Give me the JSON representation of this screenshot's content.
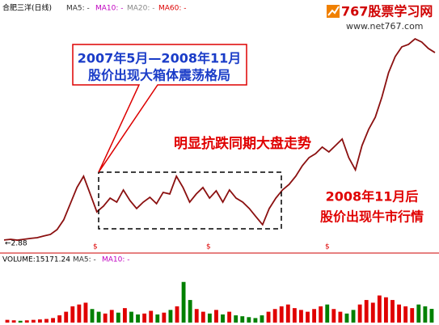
{
  "header": {
    "stock": "合肥三洋(日线)",
    "ma": [
      "MA5: -",
      "MA10: -",
      "MA20: -",
      "MA60: -"
    ]
  },
  "logo": {
    "name": "767股票学习网",
    "url": "www.net767.com"
  },
  "annotations": {
    "callout": [
      "2007年5月—2008年11月",
      "股价出现大箱体震荡格局"
    ],
    "resist": "明显抗跌同期大盘走势",
    "bull": [
      "2008年11月后",
      "股价出现牛市行情"
    ],
    "low": "←2.88",
    "markers": [
      "$",
      "$",
      "$"
    ]
  },
  "chart_data": [
    {
      "type": "line",
      "color": "#8b1010",
      "ylim": [
        2.5,
        16
      ],
      "categories": [
        null,
        null,
        null,
        null,
        null,
        null,
        null,
        null,
        null,
        null,
        null,
        null,
        null,
        null,
        null,
        null,
        null,
        null,
        null,
        null,
        null,
        null,
        null,
        null,
        null,
        null,
        null,
        null,
        null,
        null,
        null,
        null,
        null,
        null,
        null,
        null,
        null,
        null,
        null,
        null,
        null,
        null,
        null,
        null,
        null,
        null,
        null,
        null,
        null,
        null,
        null,
        null,
        null,
        null,
        null,
        null,
        null,
        null,
        null,
        null,
        null,
        null,
        null,
        null,
        null,
        null
      ],
      "values": [
        2.88,
        2.92,
        2.87,
        2.92,
        2.97,
        3.01,
        3.11,
        3.2,
        3.48,
        4.04,
        4.97,
        5.9,
        6.55,
        5.53,
        4.5,
        4.83,
        5.29,
        5.06,
        5.76,
        5.15,
        4.69,
        5.06,
        5.34,
        4.97,
        5.62,
        5.53,
        6.55,
        5.9,
        5.06,
        5.53,
        5.9,
        5.29,
        5.71,
        5.06,
        5.76,
        5.29,
        5.06,
        4.69,
        4.22,
        3.76,
        4.69,
        5.29,
        5.76,
        6.08,
        6.55,
        7.16,
        7.62,
        7.85,
        8.23,
        7.95,
        8.32,
        8.69,
        7.62,
        6.92,
        8.32,
        9.25,
        9.95,
        11.11,
        12.51,
        13.44,
        14.0,
        14.14,
        14.46,
        14.28,
        13.91,
        13.67
      ]
    },
    {
      "type": "bar",
      "label": "VOLUME:",
      "ma": [
        "MA5: -",
        "MA10: -"
      ],
      "colors": {
        "up": "#e00000",
        "down": "#008000"
      },
      "ylim": [
        0,
        60000
      ],
      "values": [
        3000,
        2500,
        2000,
        2500,
        3000,
        3500,
        4000,
        5000,
        8000,
        12000,
        18000,
        20000,
        22000,
        15000,
        12000,
        10000,
        14000,
        11000,
        16000,
        12000,
        9000,
        10000,
        13000,
        9000,
        11000,
        14000,
        18000,
        45000,
        25000,
        15000,
        12000,
        10000,
        14000,
        9000,
        12000,
        8000,
        7000,
        6000,
        5000,
        8000,
        12000,
        15000,
        18000,
        20000,
        16000,
        14000,
        12000,
        15000,
        18000,
        20000,
        15000,
        12000,
        10000,
        14000,
        20000,
        25000,
        22000,
        30000,
        28000,
        25000,
        20000,
        18000,
        16000,
        20000,
        18000,
        15171.24
      ]
    }
  ]
}
